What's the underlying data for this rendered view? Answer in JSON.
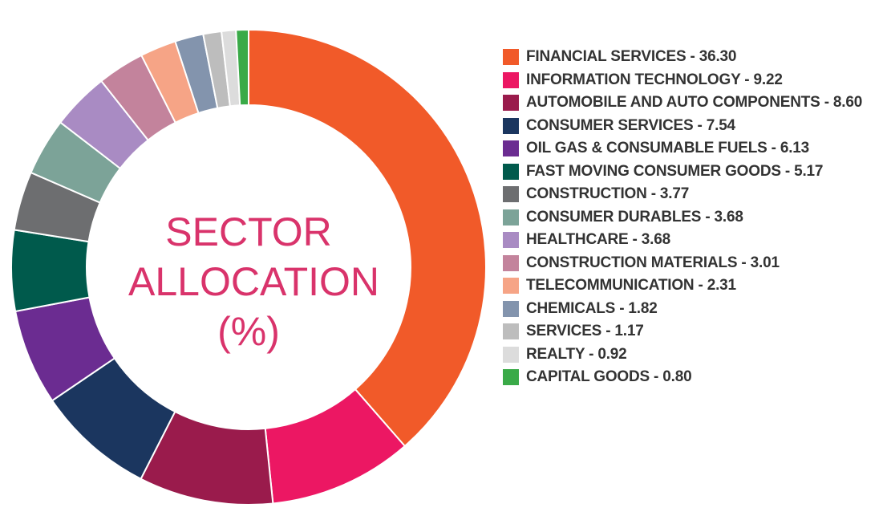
{
  "chart_data": {
    "type": "pie",
    "variant": "donut",
    "title": "SECTOR ALLOCATION (%)",
    "title_lines": [
      "SECTOR",
      "ALLOCATION",
      "(%)"
    ],
    "legend_position": "right",
    "slices": [
      {
        "label": "FINANCIAL SERVICES",
        "value": 36.3,
        "display": "FINANCIAL SERVICES - 36.30",
        "color": "#F15A29"
      },
      {
        "label": "INFORMATION TECHNOLOGY",
        "value": 9.22,
        "display": "INFORMATION TECHNOLOGY - 9.22",
        "color": "#EC1763"
      },
      {
        "label": "AUTOMOBILE AND AUTO COMPONENTS",
        "value": 8.6,
        "display": "AUTOMOBILE AND AUTO COMPONENTS - 8.60",
        "color": "#9A1B4C"
      },
      {
        "label": "CONSUMER SERVICES",
        "value": 7.54,
        "display": "CONSUMER SERVICES - 7.54",
        "color": "#1B365F"
      },
      {
        "label": "OIL GAS & CONSUMABLE FUELS",
        "value": 6.13,
        "display": "OIL GAS & CONSUMABLE FUELS - 6.13",
        "color": "#6B2C91"
      },
      {
        "label": "FAST MOVING CONSUMER GOODS",
        "value": 5.17,
        "display": "FAST MOVING CONSUMER GOODS - 5.17",
        "color": "#005A4C"
      },
      {
        "label": "CONSTRUCTION",
        "value": 3.77,
        "display": "CONSTRUCTION - 3.77",
        "color": "#6D6E70"
      },
      {
        "label": "CONSUMER DURABLES",
        "value": 3.68,
        "display": "CONSUMER DURABLES - 3.68",
        "color": "#7CA398"
      },
      {
        "label": "HEALTHCARE",
        "value": 3.68,
        "display": "HEALTHCARE - 3.68",
        "color": "#A98BC3"
      },
      {
        "label": "CONSTRUCTION MATERIALS",
        "value": 3.01,
        "display": "CONSTRUCTION MATERIALS - 3.01",
        "color": "#C3839C"
      },
      {
        "label": "TELECOMMUNICATION",
        "value": 2.31,
        "display": "TELECOMMUNICATION - 2.31",
        "color": "#F6A486"
      },
      {
        "label": "CHEMICALS",
        "value": 1.82,
        "display": "CHEMICALS - 1.82",
        "color": "#8394AD"
      },
      {
        "label": "SERVICES",
        "value": 1.17,
        "display": "SERVICES - 1.17",
        "color": "#BDBDBD"
      },
      {
        "label": "REALTY",
        "value": 0.92,
        "display": "REALTY - 0.92",
        "color": "#DCDCDC"
      },
      {
        "label": "CAPITAL GOODS",
        "value": 0.8,
        "display": "CAPITAL GOODS - 0.80",
        "color": "#3AAA48"
      }
    ]
  }
}
